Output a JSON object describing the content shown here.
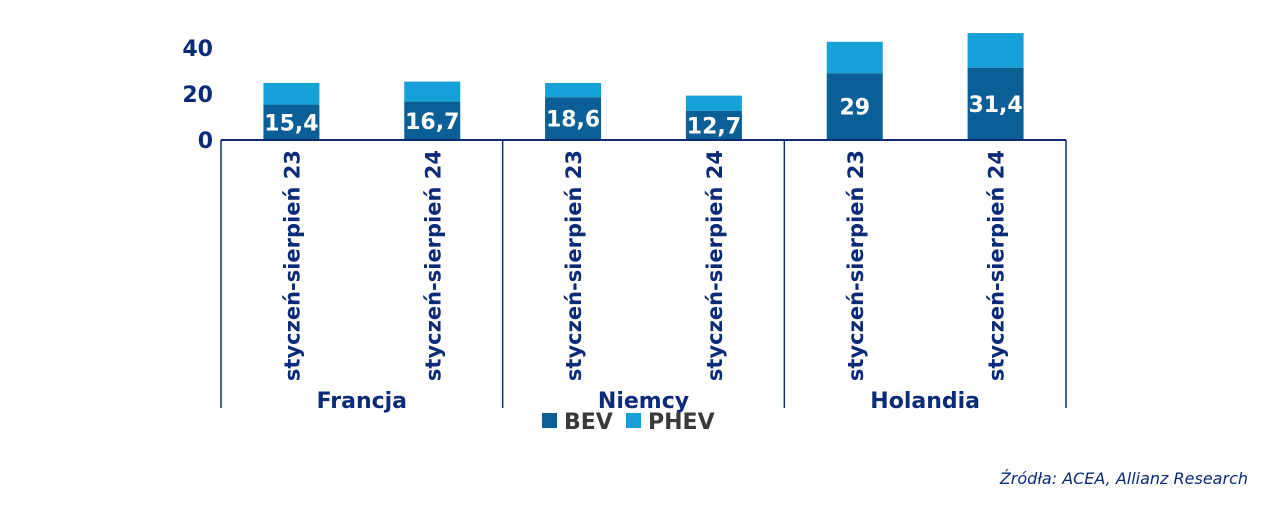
{
  "chart_data": {
    "type": "bar",
    "stacked": true,
    "groups": [
      {
        "name": "Francja",
        "categories": [
          "styczeń-sierpień 23",
          "styczeń-sierpień 24"
        ]
      },
      {
        "name": "Niemcy",
        "categories": [
          "styczeń-sierpień 23",
          "styczeń-sierpień 24"
        ]
      },
      {
        "name": "Holandia",
        "categories": [
          "styczeń-sierpień 23",
          "styczeń-sierpień 24"
        ]
      }
    ],
    "series": [
      {
        "name": "BEV",
        "color": "#0a5f96",
        "values": [
          15.4,
          16.7,
          18.6,
          12.7,
          29,
          31.4
        ],
        "labels": [
          "15,4",
          "16,7",
          "18,6",
          "12,7",
          "29",
          "31,4"
        ]
      },
      {
        "name": "PHEV",
        "color": "#15a0d8",
        "values": [
          9.4,
          8.7,
          6.2,
          6.6,
          13.7,
          15.1
        ]
      }
    ],
    "yticks": [
      "0",
      "20",
      "40"
    ],
    "ylim": [
      0,
      45
    ],
    "legend": "bottom",
    "grid": false
  },
  "source": "Źródła: ACEA, Allianz Research",
  "colors": {
    "axis": "#0b2a78",
    "bev": "#0a5f96",
    "phev": "#15a0d8"
  }
}
